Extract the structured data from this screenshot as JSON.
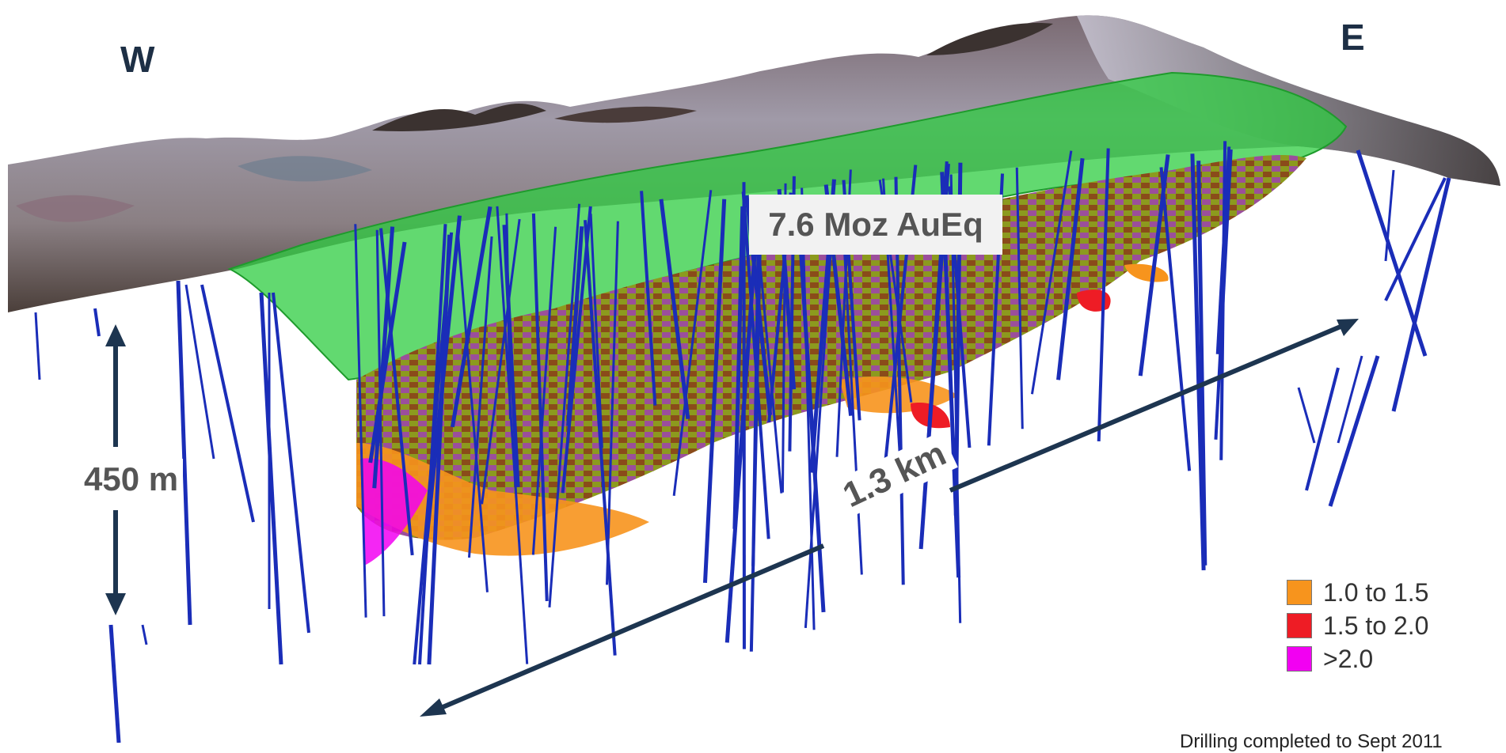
{
  "labels": {
    "west": "W",
    "east": "E",
    "depth": "450 m",
    "resource": "7.6 Moz AuEq",
    "length": "1.3 km"
  },
  "legend": {
    "items": [
      {
        "label": "1.0 to 1.5",
        "color": "#f7941d"
      },
      {
        "label": "1.5 to 2.0",
        "color": "#ee1c25"
      },
      {
        "label": ">2.0",
        "color": "#f200f2"
      }
    ]
  },
  "footer": {
    "note": "Drilling completed to Sept 2011"
  },
  "colors": {
    "arrow": "#1d3550",
    "drill_hole": "#1a2db8",
    "pit_shell": "#2ecc40",
    "block_low_grade": "#8c9a1e",
    "block_mid_grade": "#9b4f9b",
    "block_brown": "#8a4b1a",
    "terrain_light": "#b8b5c2",
    "terrain_dark": "#4b3f3a"
  }
}
